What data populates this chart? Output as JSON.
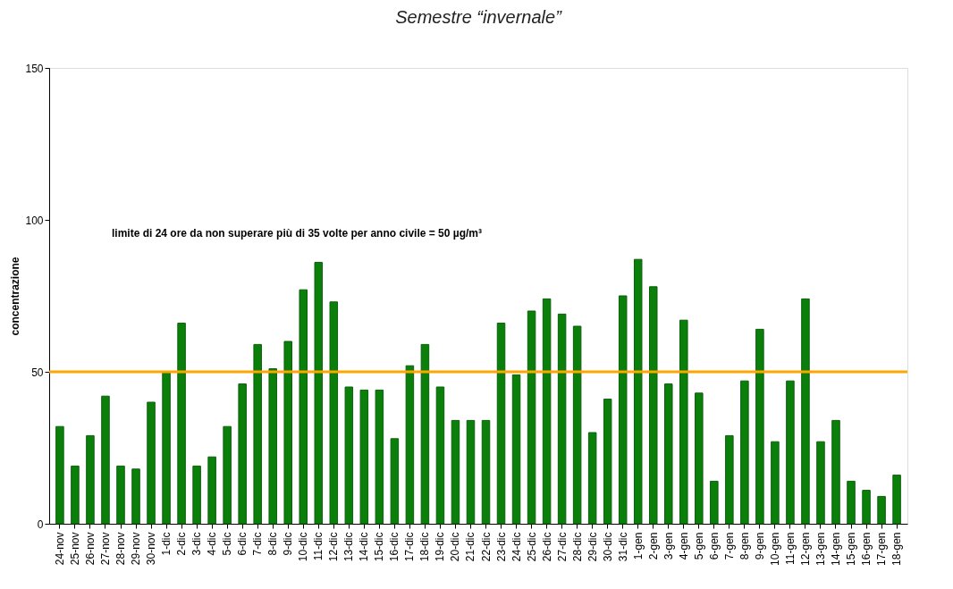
{
  "chart_data": {
    "type": "bar",
    "title": "Semestre “invernale”",
    "ylabel": "concentrazione",
    "categories": [
      "24-nov",
      "25-nov",
      "26-nov",
      "27-nov",
      "28-nov",
      "29-nov",
      "30-nov",
      "1-dic",
      "2-dic",
      "3-dic",
      "4-dic",
      "5-dic",
      "6-dic",
      "7-dic",
      "8-dic",
      "9-dic",
      "10-dic",
      "11-dic",
      "12-dic",
      "13-dic",
      "14-dic",
      "15-dic",
      "16-dic",
      "17-dic",
      "18-dic",
      "19-dic",
      "20-dic",
      "21-dic",
      "22-dic",
      "23-dic",
      "24-dic",
      "25-dic",
      "26-dic",
      "27-dic",
      "28-dic",
      "29-dic",
      "30-dic",
      "31-dic",
      "1-gen",
      "2-gen",
      "3-gen",
      "4-gen",
      "5-gen",
      "6-gen",
      "7-gen",
      "8-gen",
      "9-gen",
      "10-gen",
      "11-gen",
      "12-gen",
      "13-gen",
      "14-gen",
      "15-gen",
      "16-gen",
      "17-gen",
      "18-gen"
    ],
    "values": [
      32,
      19,
      29,
      42,
      19,
      18,
      40,
      50,
      66,
      19,
      22,
      32,
      46,
      59,
      51,
      60,
      77,
      86,
      73,
      45,
      44,
      44,
      28,
      52,
      59,
      45,
      34,
      34,
      34,
      66,
      49,
      70,
      74,
      69,
      65,
      30,
      41,
      75,
      87,
      78,
      46,
      67,
      43,
      14,
      29,
      47,
      64,
      27,
      47,
      74,
      27,
      34,
      14,
      11,
      9,
      16
    ],
    "color": "#0a7f0a",
    "ylim": [
      0,
      150
    ],
    "yticks": [
      0,
      50,
      100,
      150
    ],
    "grid": false,
    "ref_lines": [
      {
        "axis": "y",
        "value": 50,
        "color": "#ffa500"
      }
    ],
    "annotations": [
      "limite di 24 ore da non superare più di 35 volte per anno civile = 50 µg/m³"
    ]
  }
}
